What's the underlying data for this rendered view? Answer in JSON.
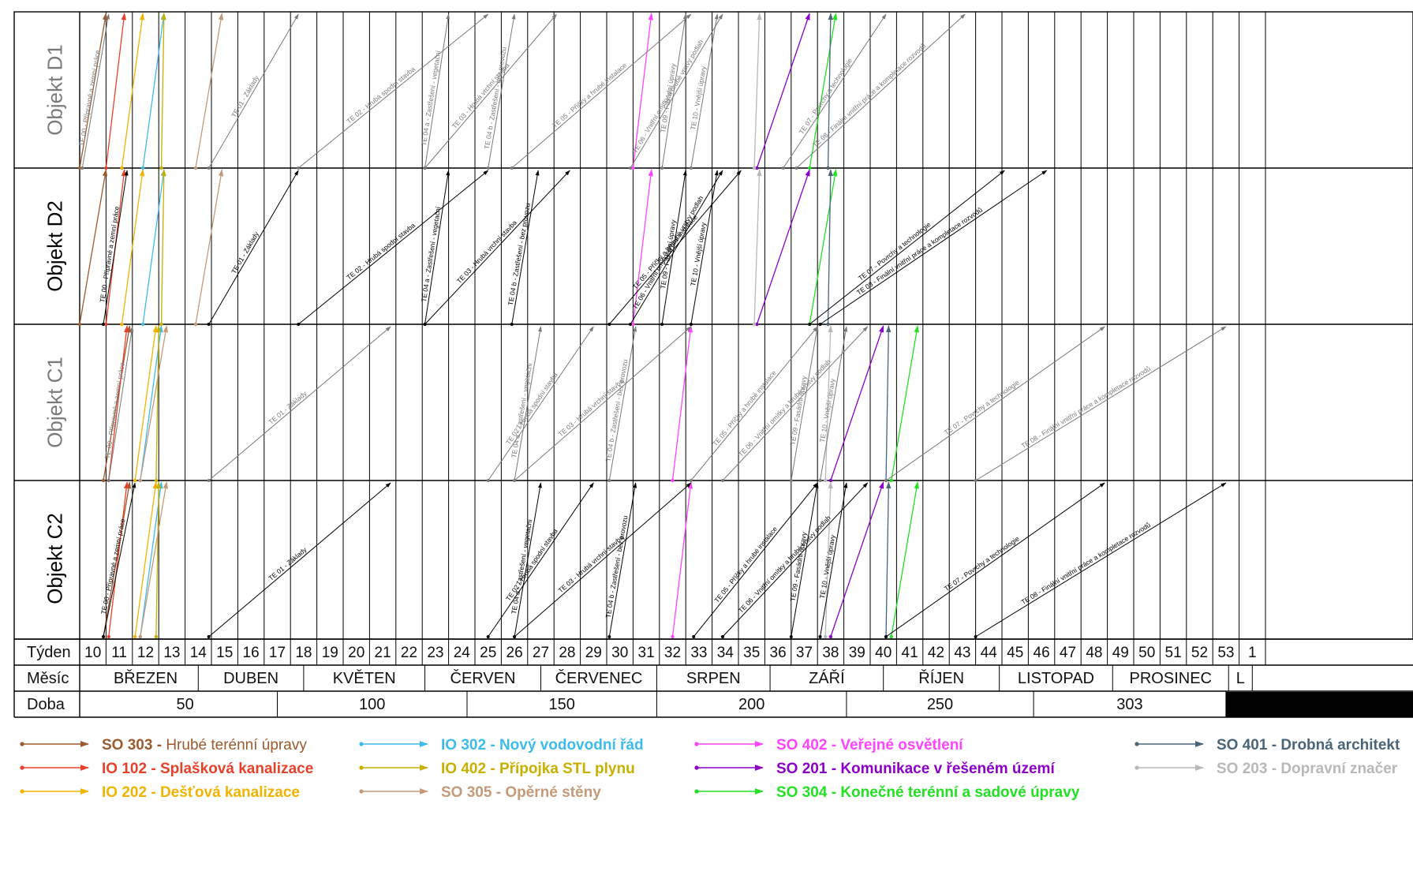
{
  "chart_data": {
    "type": "line",
    "objects": [
      {
        "name": "Objekt D1",
        "color": "#7a7a7a"
      },
      {
        "name": "Objekt D2",
        "color": "#000000"
      },
      {
        "name": "Objekt C1",
        "color": "#7a7a7a"
      },
      {
        "name": "Objekt C2",
        "color": "#000000"
      }
    ],
    "row_headers": {
      "week": "Týden",
      "month": "Měsíc",
      "duration": "Doba"
    },
    "weeks": [
      "10",
      "11",
      "12",
      "13",
      "14",
      "15",
      "16",
      "17",
      "18",
      "19",
      "20",
      "21",
      "22",
      "23",
      "24",
      "25",
      "26",
      "27",
      "28",
      "29",
      "30",
      "31",
      "32",
      "33",
      "34",
      "35",
      "36",
      "37",
      "38",
      "39",
      "40",
      "41",
      "42",
      "43",
      "44",
      "45",
      "46",
      "47",
      "48",
      "49",
      "50",
      "51",
      "52",
      "53",
      "1"
    ],
    "months": [
      {
        "label": "BŘEZEN",
        "start_week": 10,
        "end_week": 14
      },
      {
        "label": "DUBEN",
        "start_week": 14,
        "end_week": 18
      },
      {
        "label": "KVĚTEN",
        "start_week": 18,
        "end_week": 22.6
      },
      {
        "label": "ČERVEN",
        "start_week": 22.6,
        "end_week": 27
      },
      {
        "label": "ČERVENEC",
        "start_week": 27,
        "end_week": 31.4
      },
      {
        "label": "SRPEN",
        "start_week": 31.4,
        "end_week": 35.7
      },
      {
        "label": "ZÁŘÍ",
        "start_week": 35.7,
        "end_week": 40
      },
      {
        "label": "ŘÍJEN",
        "start_week": 40,
        "end_week": 44.4
      },
      {
        "label": "LISTOPAD",
        "start_week": 44.4,
        "end_week": 48.7
      },
      {
        "label": "PROSINEC",
        "start_week": 48.7,
        "end_week": 53.1
      },
      {
        "label": "L",
        "start_week": 53.1,
        "end_week": 54
      }
    ],
    "durations": [
      {
        "label": "50",
        "start_week": 10,
        "end_week": 17
      },
      {
        "label": "100",
        "start_week": 17,
        "end_week": 24.2
      },
      {
        "label": "150",
        "start_week": 24.2,
        "end_week": 31.4
      },
      {
        "label": "200",
        "start_week": 31.4,
        "end_week": 38.6
      },
      {
        "label": "250",
        "start_week": 38.6,
        "end_week": 45.7
      },
      {
        "label": "303",
        "start_week": 45.7,
        "end_week": 53
      }
    ],
    "activities": [
      {
        "name": "TE 00 - Přípravné a zemní práce",
        "spans": [
          [
            9.1,
            10.1
          ],
          [
            9.9,
            10.8
          ],
          [
            10.1,
            11.0
          ],
          [
            9.9,
            11.1
          ]
        ]
      },
      {
        "name": "TE 01 - Základy",
        "spans": [
          [
            13.9,
            17.3
          ],
          [
            13.9,
            17.3
          ],
          [
            13.9,
            20.8
          ],
          [
            13.9,
            20.8
          ]
        ]
      },
      {
        "name": "TE 02 - Hrubá spodní stavba",
        "spans": [
          [
            17.3,
            24.5
          ],
          [
            17.3,
            24.5
          ],
          [
            24.5,
            28.5
          ],
          [
            24.5,
            28.5
          ]
        ]
      },
      {
        "name": "TE 04 a - Zastřešení - vegetační",
        "spans": [
          [
            22.1,
            23.0
          ],
          [
            22.1,
            23.0
          ],
          [
            25.5,
            26.5
          ],
          [
            25.5,
            26.5
          ]
        ]
      },
      {
        "name": "TE 03 - Hrubá vrchní stavba",
        "spans": [
          [
            22.1,
            27.1
          ],
          [
            22.1,
            27.6
          ],
          [
            25.5,
            32.2
          ],
          [
            25.5,
            32.2
          ]
        ]
      },
      {
        "name": "TE 04 b - Zastřešení - bez provozu",
        "spans": [
          [
            24.5,
            25.5
          ],
          [
            25.4,
            26.4
          ],
          [
            29.1,
            30.1
          ],
          [
            29.1,
            30.1
          ]
        ]
      },
      {
        "name": "TE 05 - Příčky a hrubé instalace",
        "spans": [
          [
            25.4,
            32.2
          ],
          [
            29.1,
            34.1
          ],
          [
            32.2,
            37.0
          ],
          [
            32.3,
            37.0
          ]
        ]
      },
      {
        "name": "TE 06 - Vnitřní omítky a hrubé vrstvy podlah",
        "spans": [
          [
            29.9,
            33.4
          ],
          [
            29.9,
            33.4
          ],
          [
            33.4,
            38.9
          ],
          [
            33.4,
            38.9
          ]
        ]
      },
      {
        "name": "TE 09 - Fasádní úpravy",
        "spans": [
          [
            31.1,
            32.0
          ],
          [
            31.1,
            32.0
          ],
          [
            36.0,
            37.0
          ],
          [
            36.0,
            37.0
          ]
        ]
      },
      {
        "name": "TE 10 - Vnější úpravy",
        "spans": [
          [
            32.2,
            33.2
          ],
          [
            32.2,
            33.2
          ],
          [
            37.1,
            38.1
          ],
          [
            37.1,
            38.1
          ]
        ]
      },
      {
        "name": "TE 07 - Povrchy a technologie",
        "spans": [
          [
            35.7,
            39.6
          ],
          [
            36.7,
            44.1
          ],
          [
            39.6,
            47.9
          ],
          [
            39.6,
            47.9
          ]
        ]
      },
      {
        "name": "TE 08 - Finální vnitřní práce a kompletace rozvodů",
        "spans": [
          [
            36.2,
            42.6
          ],
          [
            37.1,
            45.7
          ],
          [
            43.0,
            52.5
          ],
          [
            43.0,
            52.5
          ]
        ]
      }
    ],
    "so_lines": [
      {
        "code": "SO 303",
        "color": "#9c5a2e",
        "starts": [
          9.0,
          9.0,
          9.9,
          9.9
        ],
        "slope": 1.0
      },
      {
        "code": "IO 102",
        "color": "#e8412a",
        "starts": [
          10.0,
          10.0,
          10.1,
          10.1
        ],
        "slope": 0.7
      },
      {
        "code": "IO 202",
        "color": "#f0b400",
        "starts": [
          10.6,
          10.6,
          11.1,
          11.1
        ],
        "slope": 0.8
      },
      {
        "code": "IO 302",
        "color": "#3dbbea",
        "starts": [
          11.4,
          11.4,
          11.3,
          11.3
        ],
        "slope": 0.8
      },
      {
        "code": "IO 402",
        "color": "#c7b000",
        "starts": [
          12.1,
          12.1,
          11.9,
          11.9
        ],
        "slope": 0.1
      },
      {
        "code": "SO 305",
        "color": "#c49a78",
        "starts": [
          13.4,
          13.4,
          11.3,
          11.3
        ],
        "slope": 1.0
      },
      {
        "code": "SO 402",
        "color": "#ff44ff",
        "starts": [
          30.0,
          30.0,
          31.5,
          31.5
        ],
        "slope": 0.7
      },
      {
        "code": "SO 201",
        "color": "#8d00c8",
        "starts": [
          34.7,
          34.7,
          37.5,
          37.5
        ],
        "slope": 2.0
      },
      {
        "code": "SO 304",
        "color": "#22e022",
        "starts": [
          36.7,
          36.7,
          39.8,
          39.8
        ],
        "slope": 1.0
      },
      {
        "code": "SO 401",
        "color": "#4a6478",
        "starts": [
          37.4,
          37.4,
          39.6,
          39.6
        ],
        "slope": 0.1
      },
      {
        "code": "SO 203",
        "color": "#b8b8b8",
        "starts": [
          34.6,
          34.6,
          37.3,
          37.3
        ],
        "slope": 0.2
      }
    ],
    "legend": [
      {
        "code": "SO 303",
        "label": "Hrubé terénní úpravy",
        "color": "#9c5a2e"
      },
      {
        "code": "IO 102",
        "label": "Splašková kanalizace",
        "color": "#e8412a"
      },
      {
        "code": "IO 202",
        "label": "Dešťová kanalizace",
        "color": "#f0b400"
      },
      {
        "code": "IO 302",
        "label": "Nový vodovodní řád",
        "color": "#3dbbea"
      },
      {
        "code": "IO 402",
        "label": "Přípojka STL plynu",
        "color": "#c7b000"
      },
      {
        "code": "SO 305",
        "label": "Opěrné stěny",
        "color": "#c49a78"
      },
      {
        "code": "SO 402",
        "label": "Veřejné osvětlení",
        "color": "#ff44ff"
      },
      {
        "code": "SO 201",
        "label": "Komunikace v řešeném území",
        "color": "#8d00c8"
      },
      {
        "code": "SO 304",
        "label": "Konečné terénní a sadové úpravy",
        "color": "#22e022"
      },
      {
        "code": "SO 401",
        "label": "Drobná architekt",
        "color": "#4a6478"
      },
      {
        "code": "SO 203",
        "label": "Dopravní značer",
        "color": "#b8b8b8"
      }
    ]
  }
}
